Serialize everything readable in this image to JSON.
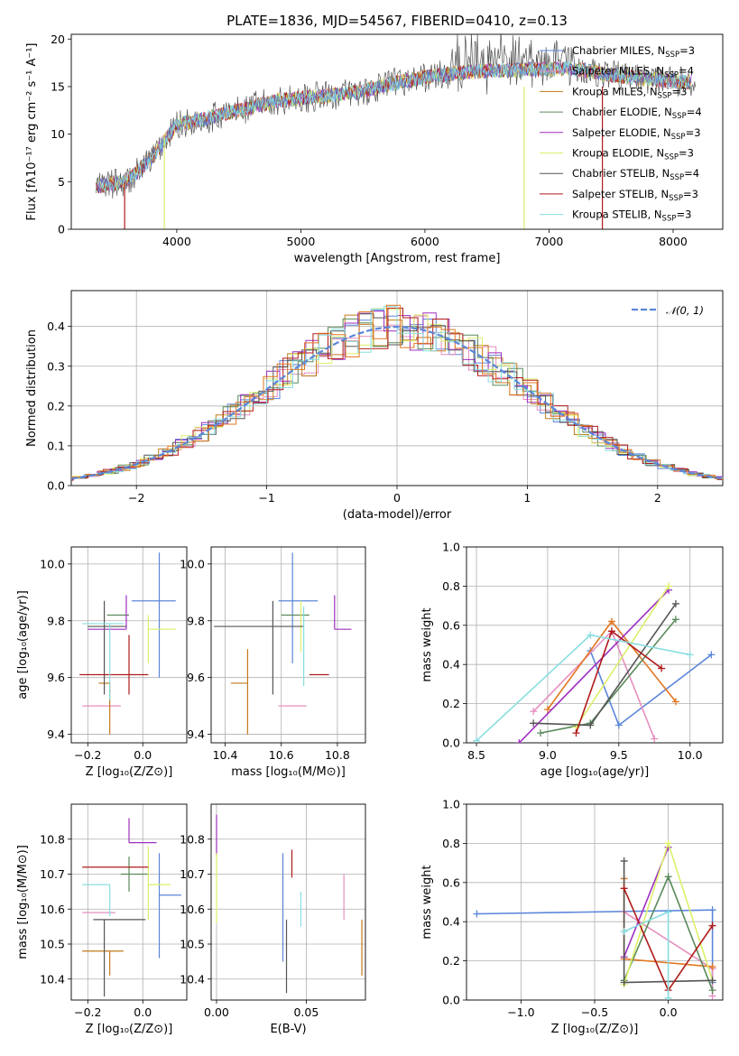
{
  "colors": {
    "ch_miles": "#5b86d9",
    "sa_miles": "#e68fbf",
    "kr_miles": "#c27a1a",
    "ch_elodie": "#5a8a5a",
    "sa_elodie": "#9f2fbf",
    "kr_elodie": "#dcef6a",
    "ch_stelib": "#555555",
    "sa_stelib": "#b01a1a",
    "kr_stelib": "#88dde0",
    "orange": "#e07722",
    "lightgreen": "#b5e05a"
  },
  "chart_data": [
    {
      "id": "spectrum",
      "type": "line",
      "title": "PLATE=1836, MJD=54567, FIBERID=0410, z=0.13",
      "xlabel": "wavelength [Angstrom, rest frame]",
      "ylabel": "Flux [fλ10⁻¹⁷ erg cm⁻² s⁻¹ A⁻¹]",
      "xlim": [
        3150,
        8400
      ],
      "ylim": [
        0,
        20.5
      ],
      "xticks": [
        "4000",
        "5000",
        "6000",
        "7000",
        "8000"
      ],
      "yticks": [
        "0",
        "5",
        "10",
        "15",
        "20"
      ],
      "continuum": {
        "x": [
          3350,
          3600,
          3800,
          4000,
          4200,
          4500,
          4800,
          5000,
          5200,
          5500,
          5800,
          6000,
          6300,
          6600,
          6900,
          7200,
          7500,
          7800,
          8100
        ],
        "y": [
          4.5,
          5.0,
          7.5,
          11.0,
          11.5,
          12.5,
          13.5,
          13.8,
          14.0,
          14.5,
          15.5,
          16.0,
          16.5,
          16.7,
          16.8,
          16.9,
          16.2,
          15.8,
          15.5
        ]
      },
      "legend_position": "right",
      "series": [
        {
          "name": "Chabrier MILES, N_SSP=3",
          "color_key": "ch_miles"
        },
        {
          "name": "Salpeter MILES, N_SSP=4",
          "color_key": "sa_miles"
        },
        {
          "name": "Kroupa MILES, N_SSP=3",
          "color_key": "kr_miles"
        },
        {
          "name": "Chabrier ELODIE, N_SSP=4",
          "color_key": "ch_elodie"
        },
        {
          "name": "Salpeter ELODIE, N_SSP=3",
          "color_key": "sa_elodie"
        },
        {
          "name": "Kroupa ELODIE, N_SSP=3",
          "color_key": "kr_elodie"
        },
        {
          "name": "Chabrier STELIB, N_SSP=4",
          "color_key": "ch_stelib"
        },
        {
          "name": "Salpeter STELIB, N_SSP=3",
          "color_key": "sa_stelib"
        },
        {
          "name": "Kroupa STELIB, N_SSP=3",
          "color_key": "kr_stelib"
        }
      ]
    },
    {
      "id": "residuals",
      "type": "histogram",
      "xlabel": "(data-model)/error",
      "ylabel": "Normed distribution",
      "xlim": [
        -2.5,
        2.5
      ],
      "ylim": [
        0,
        0.49
      ],
      "xticks": [
        "-2",
        "-1",
        "0",
        "1",
        "2"
      ],
      "yticks": [
        "0.0",
        "0.1",
        "0.2",
        "0.3",
        "0.4"
      ],
      "grid": true,
      "gaussian_label": "𝒩(0, 1)",
      "legend_position": "top-right"
    },
    {
      "id": "age_vs_Z",
      "type": "errorbar",
      "xlabel": "Z [log₁₀(Z/Z⊙)]",
      "ylabel": "age  [log₁₀(age/yr)]",
      "xlim": [
        -0.26,
        0.16
      ],
      "ylim": [
        9.37,
        10.06
      ],
      "xticks": [
        "-0.2",
        "0.0"
      ],
      "yticks": [
        "9.4",
        "9.6",
        "9.8",
        "10.0"
      ],
      "points": [
        {
          "x": 0.06,
          "y": 9.87,
          "ex": [
            0.1,
            0.06
          ],
          "ey": [
            0.27,
            0.17
          ],
          "c": "ch_miles"
        },
        {
          "x": -0.18,
          "y": 9.5,
          "ex": [
            0.04,
            0.1
          ],
          "ey": [
            0.0,
            0.0
          ],
          "c": "sa_miles"
        },
        {
          "x": -0.12,
          "y": 9.58,
          "ex": [
            0.04,
            0.0
          ],
          "ey": [
            0.18,
            0.0
          ],
          "c": "kr_miles"
        },
        {
          "x": -0.05,
          "y": 9.82,
          "ex": [
            0.08,
            0.0
          ],
          "ey": [
            0.0,
            0.0
          ],
          "c": "ch_elodie"
        },
        {
          "x": -0.06,
          "y": 9.77,
          "ex": [
            0.14,
            0.0
          ],
          "ey": [
            0.0,
            0.12
          ],
          "c": "sa_elodie"
        },
        {
          "x": 0.02,
          "y": 9.77,
          "ex": [
            0.0,
            0.1
          ],
          "ey": [
            0.12,
            0.05
          ],
          "c": "kr_elodie"
        },
        {
          "x": -0.14,
          "y": 9.78,
          "ex": [
            0.06,
            0.08
          ],
          "ey": [
            0.24,
            0.09
          ],
          "c": "ch_stelib"
        },
        {
          "x": -0.05,
          "y": 9.61,
          "ex": [
            0.18,
            0.07
          ],
          "ey": [
            0.07,
            0.14
          ],
          "c": "sa_stelib"
        },
        {
          "x": -0.12,
          "y": 9.79,
          "ex": [
            0.1,
            0.05
          ],
          "ey": [
            0.27,
            0.0
          ],
          "c": "kr_stelib"
        }
      ]
    },
    {
      "id": "age_vs_mass",
      "type": "errorbar",
      "xlabel": "mass [log₁₀(M/M⊙)]",
      "ylabel": "",
      "xlim": [
        10.35,
        10.9
      ],
      "ylim": [
        9.37,
        10.06
      ],
      "xticks": [
        "10.4",
        "10.6",
        "10.8"
      ],
      "yticks": [
        "9.4",
        "9.6",
        "9.8",
        "10.0"
      ],
      "points": [
        {
          "x": 10.64,
          "y": 9.87,
          "ex": [
            0.05,
            0.09
          ],
          "ey": [
            0.22,
            0.17
          ],
          "c": "ch_miles"
        },
        {
          "x": 10.64,
          "y": 9.5,
          "ex": [
            0.05,
            0.05
          ],
          "ey": [
            0.0,
            0.0
          ],
          "c": "sa_miles"
        },
        {
          "x": 10.48,
          "y": 9.58,
          "ex": [
            0.06,
            0.0
          ],
          "ey": [
            0.18,
            0.12
          ],
          "c": "kr_miles"
        },
        {
          "x": 10.7,
          "y": 9.82,
          "ex": [
            0.1,
            0.0
          ],
          "ey": [
            0.0,
            0.0
          ],
          "c": "ch_elodie"
        },
        {
          "x": 10.79,
          "y": 9.77,
          "ex": [
            0.0,
            0.06
          ],
          "ey": [
            0.0,
            0.12
          ],
          "c": "sa_elodie"
        },
        {
          "x": 10.67,
          "y": 9.78,
          "ex": [
            0.0,
            0.0
          ],
          "ey": [
            0.09,
            0.09
          ],
          "c": "kr_elodie"
        },
        {
          "x": 10.57,
          "y": 9.78,
          "ex": [
            0.21,
            0.11
          ],
          "ey": [
            0.24,
            0.09
          ],
          "c": "ch_stelib"
        },
        {
          "x": 10.74,
          "y": 9.61,
          "ex": [
            0.04,
            0.03
          ],
          "ey": [
            0.0,
            0.0
          ],
          "c": "sa_stelib"
        },
        {
          "x": 10.68,
          "y": 9.79,
          "ex": [
            0.0,
            0.0
          ],
          "ey": [
            0.22,
            0.06
          ],
          "c": "kr_stelib"
        }
      ]
    },
    {
      "id": "weight_vs_age",
      "type": "line",
      "xlabel": "age  [log₁₀(age/yr)]",
      "ylabel": "mass weight",
      "xlim": [
        8.43,
        10.23
      ],
      "ylim": [
        0.0,
        1.0
      ],
      "xticks": [
        "8.5",
        "9.0",
        "9.5",
        "10.0"
      ],
      "yticks": [
        "0.0",
        "0.2",
        "0.4",
        "0.6",
        "0.8",
        "1.0"
      ],
      "grid": true,
      "series": [
        {
          "c": "ch_miles",
          "x": [
            9.3,
            9.5,
            10.15
          ],
          "y": [
            0.47,
            0.09,
            0.45
          ]
        },
        {
          "c": "sa_miles",
          "x": [
            8.9,
            9.45,
            9.75
          ],
          "y": [
            0.16,
            0.57,
            0.02
          ]
        },
        {
          "c": "orange",
          "x": [
            9.0,
            9.45,
            9.9
          ],
          "y": [
            0.17,
            0.62,
            0.21
          ]
        },
        {
          "c": "ch_elodie",
          "x": [
            8.95,
            9.3,
            9.9
          ],
          "y": [
            0.05,
            0.1,
            0.63
          ]
        },
        {
          "c": "sa_elodie",
          "x": [
            8.8,
            9.85
          ],
          "y": [
            0.0,
            0.78
          ]
        },
        {
          "c": "kr_elodie",
          "x": [
            9.2,
            9.85
          ],
          "y": [
            0.08,
            0.8
          ]
        },
        {
          "c": "ch_stelib",
          "x": [
            8.9,
            9.3,
            9.9
          ],
          "y": [
            0.1,
            0.09,
            0.71
          ]
        },
        {
          "c": "sa_stelib",
          "x": [
            9.2,
            9.45,
            9.8
          ],
          "y": [
            0.05,
            0.57,
            0.38
          ]
        },
        {
          "c": "kr_stelib",
          "x": [
            8.5,
            9.3,
            10.0
          ],
          "y": [
            0.01,
            0.55,
            0.45
          ]
        }
      ]
    },
    {
      "id": "mass_vs_Z",
      "type": "errorbar",
      "xlabel": "Z [log₁₀(Z/Z⊙)]",
      "ylabel": "mass [log₁₀(M/M⊙)]",
      "xlim": [
        -0.26,
        0.16
      ],
      "ylim": [
        10.34,
        10.9
      ],
      "xticks": [
        "-0.2",
        "0.0"
      ],
      "yticks": [
        "10.4",
        "10.5",
        "10.6",
        "10.7",
        "10.8"
      ],
      "points": [
        {
          "x": 0.06,
          "y": 10.64,
          "ex": [
            0.0,
            0.08
          ],
          "ey": [
            0.18,
            0.12
          ],
          "c": "ch_miles"
        },
        {
          "x": -0.15,
          "y": 10.59,
          "ex": [
            0.07,
            0.05
          ],
          "ey": [
            0.0,
            0.0
          ],
          "c": "sa_miles"
        },
        {
          "x": -0.12,
          "y": 10.48,
          "ex": [
            0.1,
            0.05
          ],
          "ey": [
            0.07,
            0.0
          ],
          "c": "kr_miles"
        },
        {
          "x": -0.05,
          "y": 10.7,
          "ex": [
            0.03,
            0.07
          ],
          "ey": [
            0.05,
            0.05
          ],
          "c": "ch_elodie"
        },
        {
          "x": -0.05,
          "y": 10.79,
          "ex": [
            0.0,
            0.1
          ],
          "ey": [
            0.0,
            0.07
          ],
          "c": "sa_elodie"
        },
        {
          "x": 0.02,
          "y": 10.67,
          "ex": [
            0.0,
            0.08
          ],
          "ey": [
            0.1,
            0.11
          ],
          "c": "kr_elodie"
        },
        {
          "x": -0.14,
          "y": 10.57,
          "ex": [
            0.04,
            0.15
          ],
          "ey": [
            0.22,
            0.0
          ],
          "c": "ch_stelib"
        },
        {
          "x": -0.05,
          "y": 10.72,
          "ex": [
            0.17,
            0.07
          ],
          "ey": [
            0.0,
            0.0
          ],
          "c": "sa_stelib"
        },
        {
          "x": -0.12,
          "y": 10.67,
          "ex": [
            0.1,
            0.0
          ],
          "ey": [
            0.09,
            0.0
          ],
          "c": "kr_stelib"
        }
      ]
    },
    {
      "id": "mass_vs_ebv",
      "type": "errorbar",
      "xlabel": "E(B-V)",
      "ylabel": "",
      "xlim": [
        -0.003,
        0.083
      ],
      "ylim": [
        10.34,
        10.9
      ],
      "xticks": [
        "0.00",
        "0.05"
      ],
      "yticks": [
        "10.4",
        "10.5",
        "10.6",
        "10.7",
        "10.8"
      ],
      "points": [
        {
          "x": 0.037,
          "y": 10.64,
          "ey": [
            0.19,
            0.12
          ],
          "c": "ch_miles"
        },
        {
          "x": 0.071,
          "y": 10.63,
          "ey": [
            0.06,
            0.07
          ],
          "c": "sa_miles"
        },
        {
          "x": 0.081,
          "y": 10.49,
          "ey": [
            0.08,
            0.08
          ],
          "c": "kr_miles"
        },
        {
          "x": 0.0,
          "y": 10.78,
          "ey": [
            0.03,
            0.09
          ],
          "c": "sa_elodie"
        },
        {
          "x": 0.0,
          "y": 10.67,
          "ey": [
            0.11,
            0.09
          ],
          "c": "kr_elodie"
        },
        {
          "x": 0.039,
          "y": 10.57,
          "ey": [
            0.21,
            0.0
          ],
          "c": "ch_stelib"
        },
        {
          "x": 0.042,
          "y": 10.73,
          "ey": [
            0.04,
            0.04
          ],
          "c": "sa_stelib"
        },
        {
          "x": 0.047,
          "y": 10.65,
          "ey": [
            0.1,
            0.0
          ],
          "c": "kr_stelib"
        }
      ]
    },
    {
      "id": "weight_vs_Z",
      "type": "line",
      "xlabel": "Z [log₁₀(Z/Z⊙)]",
      "ylabel": "mass weight",
      "xlim": [
        -1.37,
        0.37
      ],
      "ylim": [
        0.0,
        1.0
      ],
      "xticks": [
        "-1.0",
        "-0.5",
        "0.0"
      ],
      "yticks": [
        "0.0",
        "0.2",
        "0.4",
        "0.6",
        "0.8",
        "1.0"
      ],
      "grid": true,
      "series": [
        {
          "c": "ch_miles",
          "x": [
            -1.3,
            0.3,
            0.3
          ],
          "y": [
            0.44,
            0.46,
            0.09
          ]
        },
        {
          "c": "sa_miles",
          "x": [
            -0.3,
            0.3,
            0.3
          ],
          "y": [
            0.45,
            0.16,
            0.02
          ]
        },
        {
          "c": "orange",
          "x": [
            -0.3,
            -0.3,
            0.3
          ],
          "y": [
            0.62,
            0.21,
            0.17
          ]
        },
        {
          "c": "ch_elodie",
          "x": [
            -0.3,
            0.0,
            0.3
          ],
          "y": [
            0.1,
            0.63,
            0.05
          ]
        },
        {
          "c": "sa_elodie",
          "x": [
            -0.3,
            0.0
          ],
          "y": [
            0.22,
            0.78
          ]
        },
        {
          "c": "kr_elodie",
          "x": [
            -0.3,
            0.0,
            0.3
          ],
          "y": [
            0.08,
            0.8,
            0.1
          ]
        },
        {
          "c": "ch_stelib",
          "x": [
            -0.3,
            -0.3,
            0.3
          ],
          "y": [
            0.71,
            0.09,
            0.1
          ]
        },
        {
          "c": "sa_stelib",
          "x": [
            -0.3,
            0.0,
            0.3
          ],
          "y": [
            0.57,
            0.05,
            0.38
          ]
        },
        {
          "c": "kr_stelib",
          "x": [
            -0.3,
            0.0,
            0.0
          ],
          "y": [
            0.35,
            0.45,
            0.01
          ]
        }
      ]
    }
  ]
}
